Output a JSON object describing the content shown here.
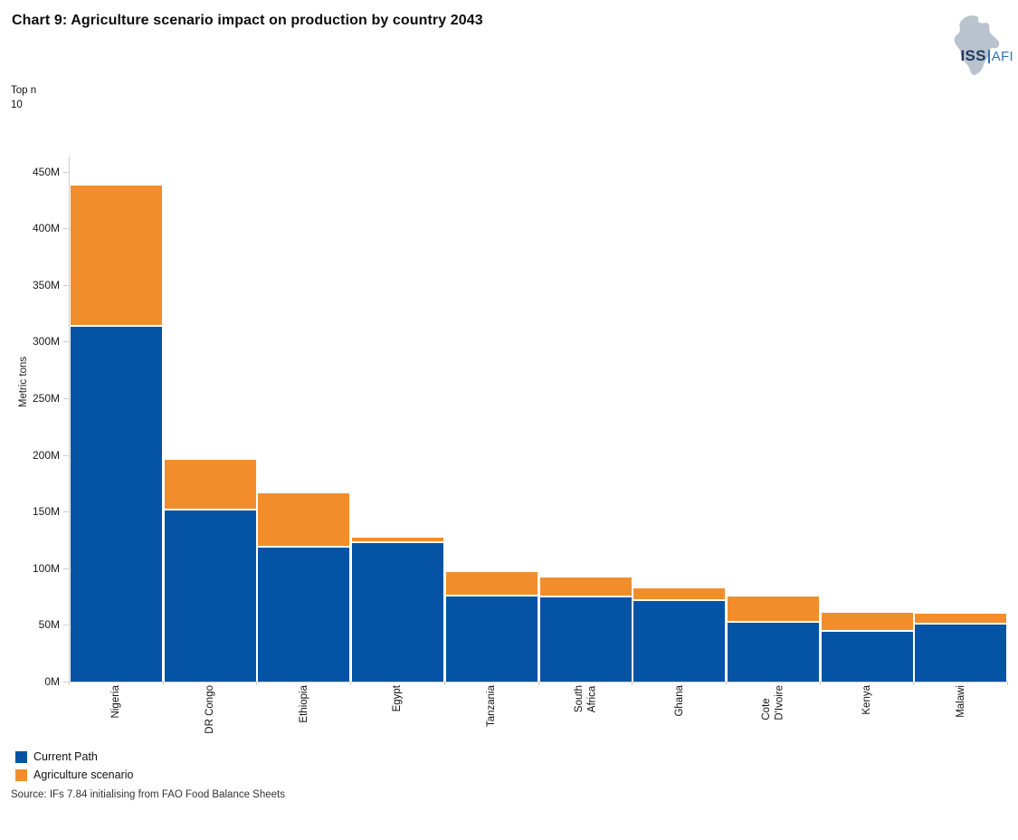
{
  "page": {
    "title": "Chart 9: Agriculture scenario impact on production by country 2043",
    "top_n_label": "Top n",
    "top_n_value": "10",
    "source": "Source: IFs 7.84 initialising from FAO Food Balance Sheets"
  },
  "logo": {
    "iss": "ISS",
    "afi": "AFI",
    "map_color": "#b9c3cd",
    "iss_color": "#1d3a5e",
    "afi_color": "#2e74b5"
  },
  "legend": [
    {
      "label": "Current Path",
      "color": "#0553A4"
    },
    {
      "label": "Agriculture scenario",
      "color": "#F18E2B"
    }
  ],
  "chart_data": {
    "type": "bar",
    "stacked": true,
    "title": "Chart 9: Agriculture scenario impact on production by country 2043",
    "ylabel": "Metric tons",
    "unit": "M metric tons",
    "ylim": [
      0,
      450
    ],
    "ytick_step": 50,
    "y_ticks": [
      "0M",
      "50M",
      "100M",
      "150M",
      "200M",
      "250M",
      "300M",
      "350M",
      "400M",
      "450M"
    ],
    "grid": false,
    "legend_position": "bottom-left",
    "categories": [
      "Nigeria",
      "DR Congo",
      "Ethiopia",
      "Egypt",
      "Tanzania",
      "South Africa",
      "Ghana",
      "Cote D'Ivoire",
      "Kenya",
      "Malawi"
    ],
    "categories_display": [
      "Nigeria",
      "DR Congo",
      "Ethiopia",
      "Egypt",
      "Tanzania",
      "South\nAfrica",
      "Ghana",
      "Cote\nD'Ivoire",
      "Kenya",
      "Malawi"
    ],
    "series": [
      {
        "name": "Current Path",
        "color": "#0553A4",
        "values": [
          313,
          151,
          118,
          122,
          75,
          74,
          71,
          52,
          44,
          50
        ]
      },
      {
        "name": "Agriculture scenario",
        "color": "#F18E2B",
        "values": [
          125,
          45,
          48,
          5,
          22,
          18,
          11,
          23,
          17,
          10
        ]
      }
    ],
    "stack_totals": [
      438,
      196,
      166,
      127,
      97,
      92,
      82,
      75,
      61,
      60
    ]
  }
}
